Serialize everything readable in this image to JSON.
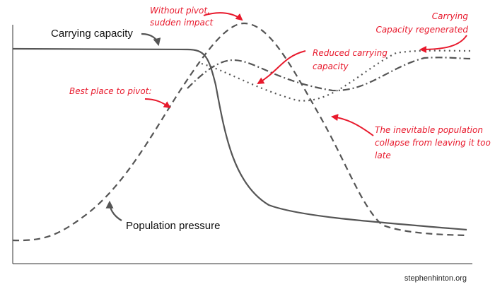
{
  "labels": {
    "carrying_capacity": "Carrying capacity",
    "population_pressure": "Population pressure"
  },
  "annotations": {
    "without_pivot": [
      "Without pivot,",
      "sudden impact"
    ],
    "regenerated": [
      "Carrying",
      "Capacity regenerated"
    ],
    "reduced": [
      "Reduced carrying",
      "capacity"
    ],
    "best_place": [
      "Best place to pivot:"
    ],
    "collapse": [
      "The inevitable population",
      "collapse from leaving it too",
      "late"
    ]
  },
  "footer": {
    "source": "stephenhinton.org"
  }
}
